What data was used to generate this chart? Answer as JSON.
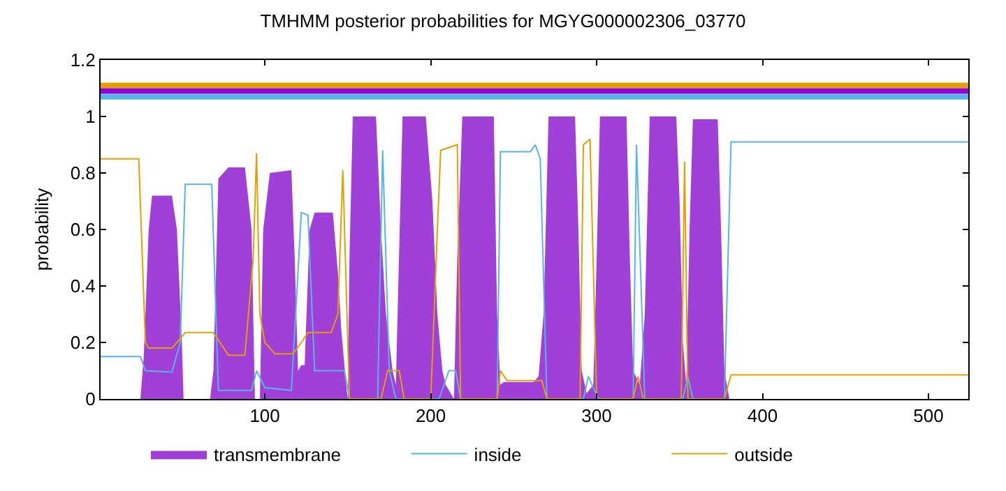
{
  "chart_data": {
    "type": "line",
    "title": "TMHMM posterior probabilities for MGYG000002306_03770",
    "ylabel": "probability",
    "xlim": [
      1,
      524
    ],
    "xticks": [
      100,
      200,
      300,
      400,
      500
    ],
    "ylim": [
      0,
      1.2
    ],
    "yticks": [
      0,
      0.2,
      0.4,
      0.6,
      0.8,
      1,
      1.2
    ],
    "grid": false,
    "legend": "bottom",
    "marker": "none",
    "line_style": "solid",
    "series": [
      {
        "name": "transmembrane",
        "type": "area",
        "color": "#a040d8",
        "x": [
          1,
          25,
          27,
          30,
          32,
          44,
          47,
          50,
          51,
          67,
          69,
          72,
          78,
          88,
          92,
          94,
          97,
          99,
          103,
          116,
          118,
          120,
          122,
          124,
          127,
          130,
          141,
          144,
          146,
          149,
          150,
          151,
          153,
          167,
          170,
          173,
          177,
          179,
          180,
          183,
          197,
          201,
          204,
          207,
          209,
          214,
          216,
          219,
          238,
          240,
          242,
          244,
          262,
          265,
          268,
          271,
          287,
          289,
          291,
          294,
          298,
          300,
          302,
          318,
          320,
          322,
          326,
          329,
          332,
          348,
          350,
          352,
          354,
          356,
          358,
          373,
          375,
          377,
          380,
          524
        ],
        "values": [
          0,
          0,
          0.15,
          0.6,
          0.72,
          0.72,
          0.6,
          0.2,
          0,
          0,
          0.1,
          0.78,
          0.82,
          0.82,
          0.6,
          0,
          0,
          0.6,
          0.8,
          0.81,
          0.5,
          0.1,
          0.12,
          0.12,
          0.6,
          0.66,
          0.66,
          0.45,
          0.25,
          0.05,
          0,
          0.5,
          1,
          1,
          0.6,
          0.3,
          0.1,
          0.05,
          0.3,
          1,
          1,
          0.7,
          0.3,
          0.1,
          0.05,
          0,
          0.5,
          1,
          1,
          0.3,
          0.05,
          0.06,
          0.06,
          0.08,
          0.3,
          1,
          1,
          0.6,
          0.1,
          0.02,
          0.05,
          0.5,
          1,
          1,
          0.5,
          0.1,
          0.05,
          0.3,
          1,
          1,
          0.7,
          0.2,
          0.05,
          0.6,
          0.99,
          0.99,
          0.6,
          0.1,
          0,
          0
        ]
      },
      {
        "name": "inside",
        "color": "#56b4e9",
        "x": [
          1,
          25,
          28,
          44,
          49,
          52,
          68,
          72,
          92,
          95,
          100,
          116,
          122,
          126,
          130,
          148,
          151,
          168,
          171,
          175,
          179,
          205,
          211,
          215,
          218,
          240,
          242,
          260,
          263,
          266,
          270,
          292,
          295,
          301,
          322,
          324,
          329,
          352,
          355,
          358,
          377,
          381,
          524
        ],
        "values": [
          0.15,
          0.15,
          0.1,
          0.095,
          0.2,
          0.76,
          0.76,
          0.03,
          0.03,
          0.1,
          0.04,
          0.03,
          0.66,
          0.65,
          0.1,
          0.1,
          0,
          0,
          0.88,
          0.1,
          0,
          0,
          0.1,
          0.1,
          0,
          0,
          0.875,
          0.875,
          0.9,
          0.85,
          0,
          0,
          0.08,
          0,
          0,
          0.9,
          0,
          0,
          0.08,
          0,
          0,
          0.91,
          0.91
        ]
      },
      {
        "name": "outside",
        "color": "#e69f00",
        "x": [
          1,
          24,
          28,
          30,
          44,
          47,
          52,
          69,
          78,
          88,
          93,
          95,
          97,
          100,
          106,
          117,
          122,
          126,
          140,
          144,
          147,
          151,
          170,
          174,
          181,
          184,
          200,
          204,
          206,
          216,
          218,
          240,
          242,
          246,
          267,
          270,
          290,
          292,
          296,
          300,
          322,
          325,
          328,
          351,
          353,
          355,
          377,
          381,
          524
        ],
        "values": [
          0.85,
          0.85,
          0.2,
          0.18,
          0.18,
          0.2,
          0.235,
          0.235,
          0.155,
          0.155,
          0.5,
          0.87,
          0.3,
          0.2,
          0.16,
          0.16,
          0.2,
          0.235,
          0.235,
          0.3,
          0.81,
          0,
          0,
          0.1,
          0.1,
          0,
          0,
          0.6,
          0.88,
          0.9,
          0,
          0,
          0.1,
          0.065,
          0.065,
          0,
          0,
          0.9,
          0.92,
          0,
          0,
          0.08,
          0,
          0,
          0.84,
          0,
          0,
          0.085,
          0.085
        ]
      },
      {
        "color": "#e69f00",
        "x": [
          1,
          524
        ],
        "values": [
          1.11,
          1.11
        ]
      },
      {
        "color": "#9400d3",
        "x": [
          1,
          524
        ],
        "values": [
          1.09,
          1.09
        ]
      },
      {
        "color": "#56b4e9",
        "x": [
          1,
          524
        ],
        "values": [
          1.07,
          1.07
        ]
      }
    ]
  }
}
